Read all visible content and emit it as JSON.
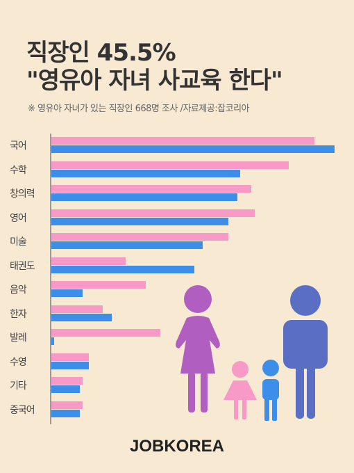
{
  "header": {
    "title_line1": "직장인 45.5%",
    "title_line2": "\"영유아 자녀 사교육 한다\"",
    "source_note": "※ 영유아 자녀가 있는 직장인  668명 조사   /자료제공:잡코리아"
  },
  "brand": {
    "logo_text": "JOBKOREA"
  },
  "colors": {
    "background": "#f8e9d3",
    "series_pink": "#f79ac8",
    "series_blue": "#3d8ee8",
    "mother": "#b05fc0",
    "father": "#5a6fc4",
    "girl": "#f79ac8",
    "boy": "#3d8ee8"
  },
  "icons": [
    "mother-figure-icon",
    "girl-figure-icon",
    "boy-figure-icon",
    "father-figure-icon"
  ],
  "chart_data": {
    "type": "bar",
    "orientation": "horizontal",
    "categories": [
      "국어",
      "수학",
      "창의력",
      "영어",
      "미술",
      "태권도",
      "음악",
      "한자",
      "발레",
      "수영",
      "기타",
      "중국어"
    ],
    "series": [
      {
        "values": [
          92,
          83,
          70,
          71,
          62,
          26,
          33,
          18,
          38,
          13,
          11,
          11
        ]
      },
      {
        "values": [
          99,
          66,
          65,
          62,
          53,
          50,
          11,
          21,
          1,
          13,
          10,
          10
        ]
      }
    ],
    "xlim": [
      0,
      100
    ],
    "grid": false,
    "legend": "none"
  }
}
